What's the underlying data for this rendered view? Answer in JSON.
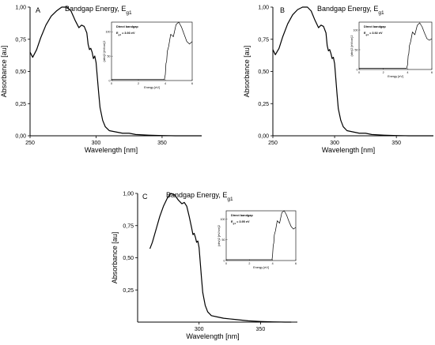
{
  "figure": {
    "main_title": "Bandgap Energy, E",
    "main_title_sub": "g1"
  },
  "chart_data": [
    {
      "id": "A",
      "type": "line",
      "panel_label": "A",
      "title": "Bandgap Energy, E",
      "title_sub": "g1",
      "xlabel": "Wavelength [nm]",
      "ylabel": "Absorbance [au]",
      "xlim": [
        250,
        380
      ],
      "ylim": [
        0,
        1.0
      ],
      "x_ticks": [
        250,
        300,
        350
      ],
      "y_ticks": [
        "0,00",
        "0,25",
        "0,50",
        "0,75",
        "1,00"
      ],
      "series": [
        {
          "x": [
            250,
            252,
            255,
            258,
            262,
            266,
            270,
            274,
            278,
            281,
            284,
            287,
            289,
            291,
            293,
            294,
            295,
            296,
            297,
            298,
            299,
            300,
            301,
            302,
            303,
            305,
            307,
            310,
            315,
            320,
            325,
            330,
            340,
            350,
            360,
            370,
            380
          ],
          "y": [
            0.65,
            0.61,
            0.67,
            0.76,
            0.86,
            0.93,
            0.97,
            1.0,
            1.0,
            0.97,
            0.9,
            0.84,
            0.86,
            0.85,
            0.8,
            0.71,
            0.67,
            0.68,
            0.65,
            0.6,
            0.62,
            0.57,
            0.45,
            0.33,
            0.22,
            0.12,
            0.07,
            0.04,
            0.03,
            0.02,
            0.02,
            0.01,
            0.005,
            0.002,
            0.0,
            0.0,
            0.0
          ]
        }
      ],
      "inset": {
        "legend_title": "Direct bandgap",
        "value_label": "E",
        "value_sub": "g1",
        "value_text": " = 3.93 eV",
        "xlabel": "Energy [eV]",
        "ylabel": "(αhv)2 [eV/cm]2",
        "xlim": [
          0,
          6
        ],
        "ylim": [
          0,
          120
        ],
        "x_ticks": [
          0,
          2,
          4,
          6
        ],
        "y_ticks": [
          0,
          50,
          100
        ],
        "y_tick_labels": [
          "0",
          "50",
          "100"
        ],
        "series": [
          {
            "x": [
              0,
              3.6,
              3.93,
              4.0,
              4.05,
              4.1,
              4.15,
              4.25,
              4.4,
              4.6,
              4.8,
              5.0,
              5.2,
              5.4,
              5.6,
              5.8,
              6.0
            ],
            "y": [
              2,
              2,
              2,
              12,
              35,
              40,
              60,
              70,
              95,
              90,
              115,
              120,
              110,
              95,
              80,
              75,
              80
            ]
          }
        ]
      }
    },
    {
      "id": "B",
      "type": "line",
      "panel_label": "B",
      "title": "Bandgap Energy, E",
      "title_sub": "g1",
      "xlabel": "Wavelength [nm]",
      "ylabel": "Absorbance [au]",
      "xlim": [
        250,
        380
      ],
      "ylim": [
        0,
        1.0
      ],
      "x_ticks": [
        250,
        300,
        350
      ],
      "y_ticks": [
        "0,00",
        "0,25",
        "0,50",
        "0,75",
        "1,00"
      ],
      "series": [
        {
          "x": [
            250,
            252,
            255,
            258,
            262,
            266,
            270,
            274,
            278,
            281,
            284,
            287,
            289,
            291,
            293,
            294,
            295,
            296,
            297,
            298,
            299,
            300,
            301,
            302,
            303,
            305,
            307,
            310,
            315,
            320,
            325,
            330,
            340,
            350,
            360,
            370,
            380
          ],
          "y": [
            0.67,
            0.63,
            0.68,
            0.77,
            0.87,
            0.94,
            0.98,
            1.0,
            1.0,
            0.97,
            0.9,
            0.84,
            0.86,
            0.85,
            0.8,
            0.7,
            0.66,
            0.67,
            0.64,
            0.6,
            0.61,
            0.56,
            0.44,
            0.32,
            0.21,
            0.12,
            0.07,
            0.04,
            0.03,
            0.02,
            0.02,
            0.01,
            0.005,
            0.002,
            0.0,
            0.0,
            0.0
          ]
        }
      ],
      "inset": {
        "legend_title": "Direct bandgap",
        "value_label": "E",
        "value_sub": "g1",
        "value_text": " = 3.92 eV",
        "xlabel": "Energy [eV]",
        "ylabel": "(αhv)2 [eV/cm]2",
        "xlim": [
          0,
          6
        ],
        "ylim": [
          0,
          120
        ],
        "x_ticks": [
          0,
          2,
          4,
          6
        ],
        "y_ticks": [
          0,
          50,
          100
        ],
        "y_tick_labels": [
          "0",
          "50",
          "100"
        ],
        "series": [
          {
            "x": [
              0,
              3.6,
              3.92,
              4.0,
              4.05,
              4.1,
              4.15,
              4.25,
              4.4,
              4.6,
              4.8,
              5.0,
              5.2,
              5.4,
              5.6,
              5.8,
              6.0
            ],
            "y": [
              3,
              3,
              3,
              12,
              35,
              40,
              60,
              70,
              95,
              88,
              112,
              118,
              108,
              92,
              78,
              74,
              78
            ]
          }
        ]
      }
    },
    {
      "id": "C",
      "type": "line",
      "panel_label": "C",
      "title": "Bandgap Energy, E",
      "title_sub": "g1",
      "xlabel": "Wavelength [nm]",
      "ylabel": "Absorbance [au]",
      "xlim": [
        250,
        380
      ],
      "ylim": [
        0,
        1.0
      ],
      "x_ticks": [
        300,
        350
      ],
      "y_ticks": [
        "0,25",
        "0,50",
        "0,75",
        "1,00"
      ],
      "series": [
        {
          "x": [
            260,
            262,
            265,
            268,
            271,
            274,
            277,
            280,
            283,
            286,
            288,
            290,
            292,
            294,
            295,
            296,
            297,
            298,
            299,
            300,
            301,
            302,
            303,
            305,
            307,
            310,
            315,
            320,
            325,
            330,
            340,
            350,
            360,
            370,
            375
          ],
          "y": [
            0.57,
            0.62,
            0.72,
            0.82,
            0.9,
            0.96,
            1.0,
            0.99,
            0.95,
            0.92,
            0.93,
            0.9,
            0.82,
            0.73,
            0.68,
            0.69,
            0.66,
            0.62,
            0.63,
            0.58,
            0.46,
            0.34,
            0.23,
            0.13,
            0.08,
            0.05,
            0.04,
            0.03,
            0.025,
            0.02,
            0.01,
            0.005,
            0.002,
            0.0,
            0.0
          ]
        }
      ],
      "inset": {
        "legend_title": "Direct bandgap",
        "value_label": "E",
        "value_sub": "g1",
        "value_text": " = 3.95 eV",
        "xlabel": "Energy [eV]",
        "ylabel": "(αhv)2 [eV/cm]2",
        "xlim": [
          0,
          6
        ],
        "ylim": [
          0,
          120
        ],
        "x_ticks": [
          0,
          2,
          4,
          6
        ],
        "y_ticks": [
          0,
          50,
          100
        ],
        "y_tick_labels": [
          "0",
          "50",
          "100"
        ],
        "series": [
          {
            "x": [
              0,
              3.6,
              3.95,
              4.0,
              4.05,
              4.1,
              4.15,
              4.25,
              4.4,
              4.6,
              4.8,
              5.0,
              5.2,
              5.4,
              5.6,
              5.8,
              6.0
            ],
            "y": [
              2,
              2,
              2,
              14,
              36,
              42,
              62,
              72,
              96,
              90,
              116,
              120,
              110,
              95,
              82,
              76,
              80
            ]
          }
        ]
      }
    }
  ]
}
